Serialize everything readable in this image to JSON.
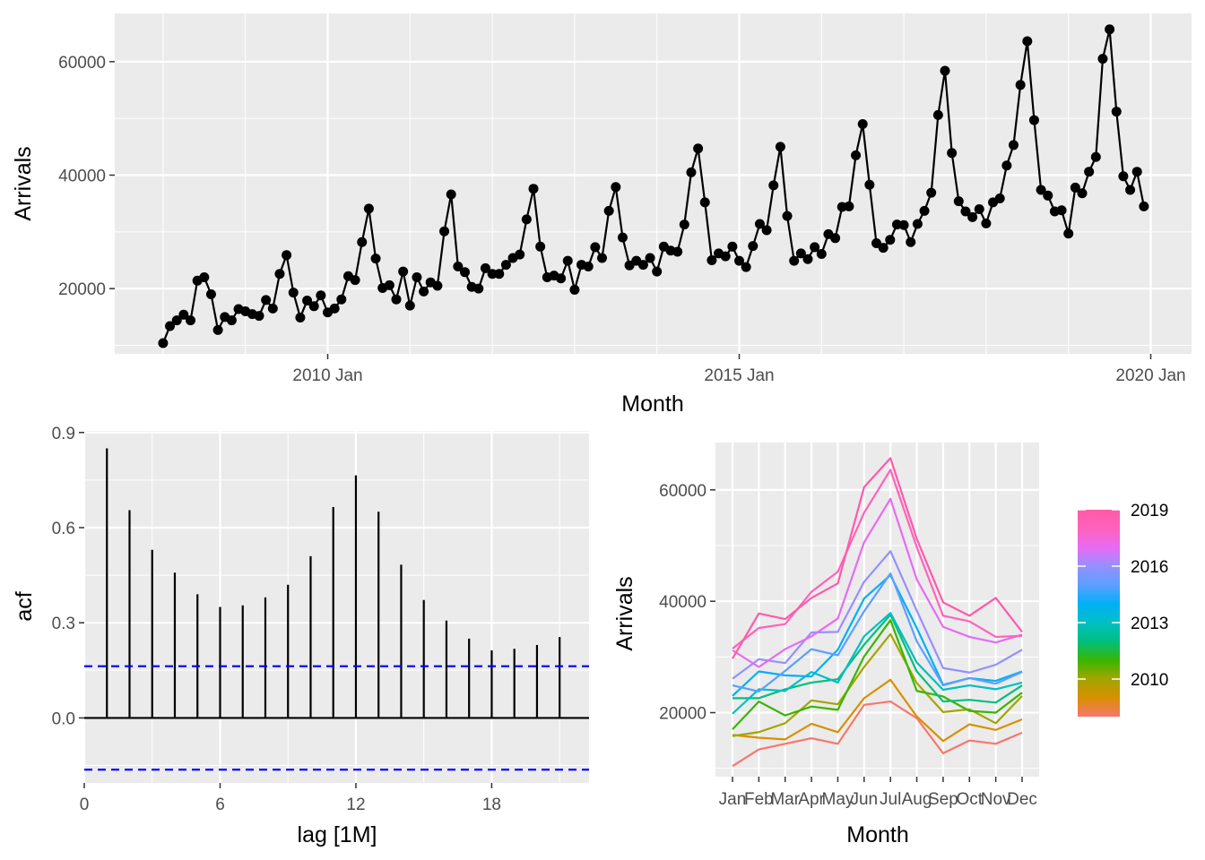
{
  "chart_data": [
    {
      "type": "line",
      "xlabel": "Month",
      "ylabel": "Arrivals",
      "x_ticks": [
        "2010 Jan",
        "2015 Jan",
        "2020 Jan"
      ],
      "y_ticks": [
        "20000",
        "40000",
        "60000"
      ],
      "ylim": [
        8500,
        68500
      ],
      "x_start": "2008 Jan",
      "points_per_year": 12,
      "series": [
        {
          "values": [
            10400,
            13400,
            14400,
            15400,
            14400,
            21400,
            22000,
            19000,
            12700,
            15000,
            14400,
            16400,
            16000,
            15500,
            15200,
            18000,
            16500,
            22600,
            25900,
            19300,
            14900,
            17900,
            16900,
            18800,
            15800,
            16500,
            18100,
            22200,
            21500,
            28200,
            34100,
            25300,
            20100,
            20600,
            18100,
            23000,
            17000,
            22000,
            19500,
            21100,
            20500,
            30100,
            36600,
            23900,
            22900,
            20300,
            20000,
            23600,
            22600,
            22600,
            24200,
            25400,
            26000,
            32200,
            37600,
            27400,
            22000,
            22300,
            21800,
            24900,
            19800,
            24200,
            23900,
            27300,
            25400,
            33700,
            37900,
            29000,
            24100,
            24900,
            24200,
            25400,
            23000,
            27400,
            26700,
            26500,
            31300,
            40500,
            44700,
            35200,
            25000,
            26200,
            25700,
            27400,
            24900,
            23800,
            27500,
            31400,
            30300,
            38200,
            45000,
            32800,
            24900,
            26200,
            25200,
            27300,
            26100,
            29600,
            28900,
            34400,
            34500,
            43500,
            49000,
            38300,
            28000,
            27200,
            28600,
            31300,
            31200,
            28200,
            31400,
            33700,
            36900,
            50600,
            58400,
            43900,
            35400,
            33600,
            32600,
            34000,
            31500,
            35200,
            35900,
            41700,
            45300,
            55900,
            63600,
            49700,
            37400,
            36400,
            33600,
            33800,
            29700,
            37800,
            36800,
            40600,
            43200,
            60500,
            65700,
            51200,
            39800,
            37400,
            40600,
            34500
          ]
        }
      ]
    },
    {
      "type": "bar",
      "xlabel": "lag [1M]",
      "ylabel": "acf",
      "x_ticks": [
        "0",
        "6",
        "12",
        "18"
      ],
      "y_ticks": [
        "0.0",
        "0.3",
        "0.6",
        "0.9"
      ],
      "xlim": [
        0,
        22.3
      ],
      "ylim": [
        -0.205,
        0.905
      ],
      "lags": [
        1,
        2,
        3,
        4,
        5,
        6,
        7,
        8,
        9,
        10,
        11,
        12,
        13,
        14,
        15,
        16,
        17,
        18,
        19,
        20,
        21
      ],
      "values": [
        0.85,
        0.655,
        0.53,
        0.458,
        0.39,
        0.35,
        0.355,
        0.38,
        0.42,
        0.51,
        0.665,
        0.765,
        0.65,
        0.483,
        0.372,
        0.307,
        0.25,
        0.213,
        0.218,
        0.23,
        0.255
      ],
      "confidence_bound": 0.163,
      "bound_color": "#0000ff"
    },
    {
      "type": "line",
      "xlabel": "Month",
      "ylabel": "Arrivals",
      "categories": [
        "Jan",
        "Feb",
        "Mar",
        "Apr",
        "May",
        "Jun",
        "Jul",
        "Aug",
        "Sep",
        "Oct",
        "Nov",
        "Dec"
      ],
      "y_ticks": [
        "20000",
        "40000",
        "60000"
      ],
      "ylim": [
        8500,
        68500
      ],
      "legend": {
        "position": "right",
        "labels": [
          "2019",
          "2016",
          "2013",
          "2010"
        ],
        "label_years": [
          2019,
          2016,
          2013,
          2010
        ],
        "year_range": [
          2008,
          2019
        ],
        "colors": [
          "#f8766d",
          "#d89000",
          "#a3a500",
          "#39b600",
          "#00bf7d",
          "#00bfc4",
          "#00b0f6",
          "#5c9fff",
          "#9590ff",
          "#e76bf3",
          "#ff62bc",
          "#ff5aa8"
        ]
      }
    }
  ]
}
